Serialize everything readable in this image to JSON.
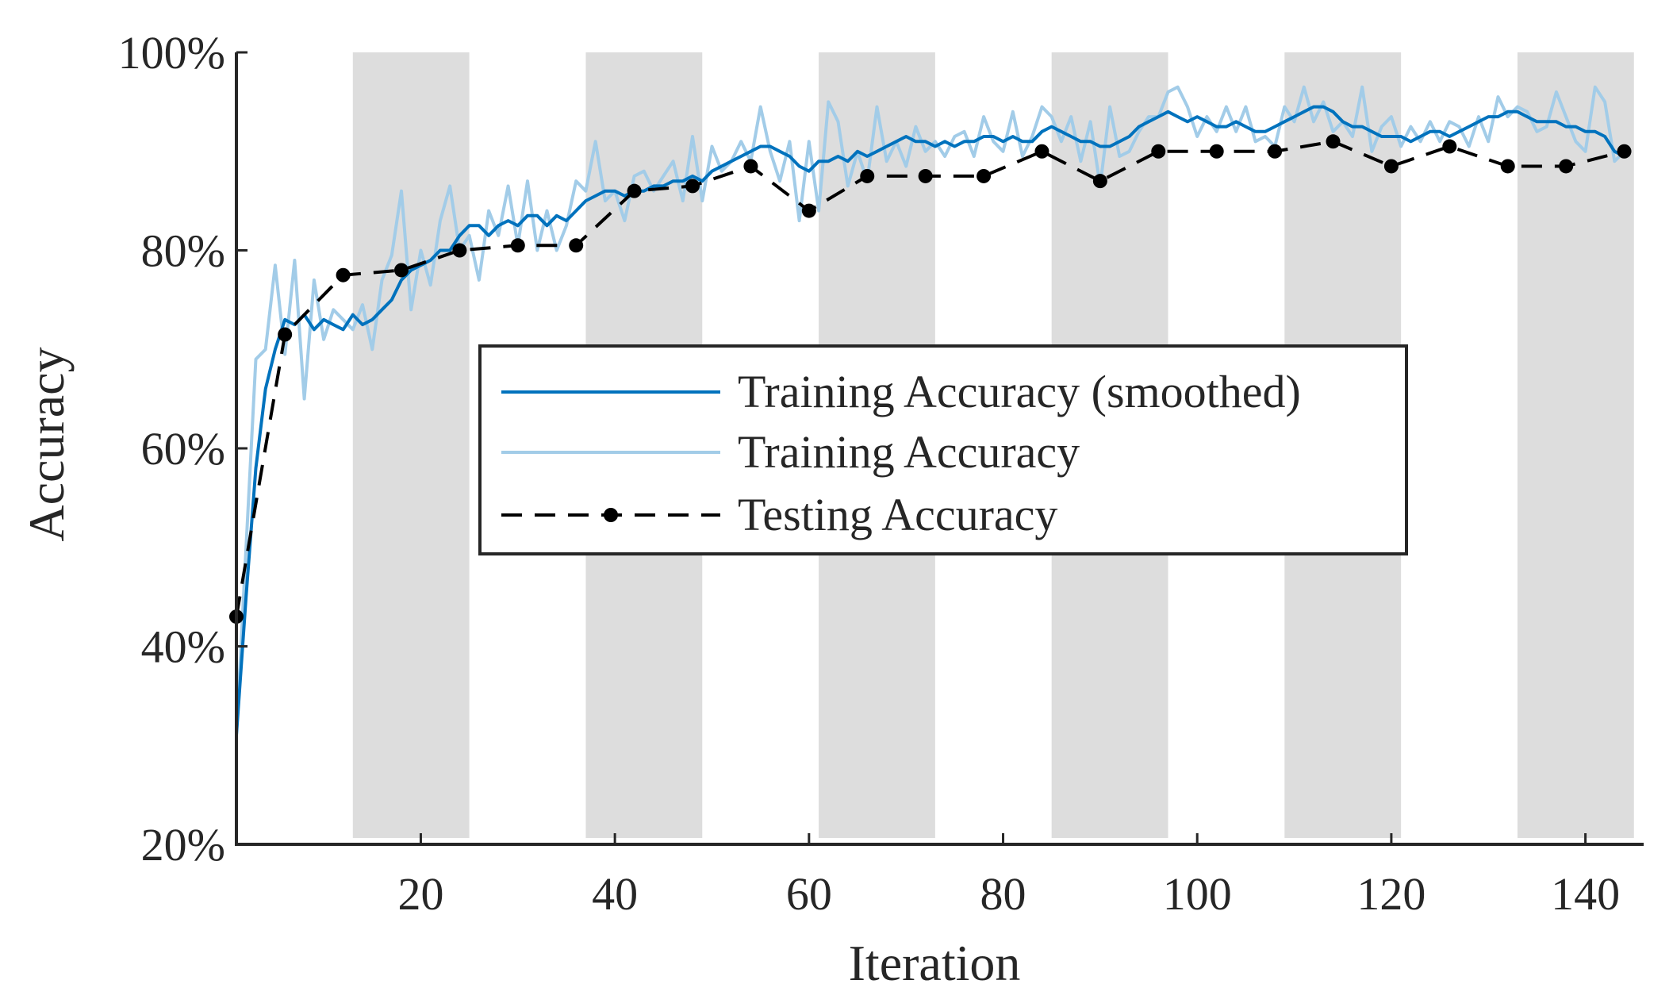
{
  "chart_data": {
    "type": "line",
    "title": "",
    "xlabel": "Iteration",
    "ylabel": "Accuracy",
    "xlim": [
      1,
      146
    ],
    "ylim": [
      20,
      100
    ],
    "xticks": [
      20,
      40,
      60,
      80,
      100,
      120,
      140
    ],
    "xtick_labels": [
      "20",
      "40",
      "60",
      "80",
      "100",
      "120",
      "140"
    ],
    "yticks": [
      20,
      40,
      60,
      80,
      100
    ],
    "ytick_labels": [
      "20%",
      "40%",
      "60%",
      "80%",
      "100%"
    ],
    "epoch_bands": [
      [
        13,
        25
      ],
      [
        37,
        49
      ],
      [
        61,
        73
      ],
      [
        85,
        97
      ],
      [
        109,
        121
      ],
      [
        133,
        145
      ]
    ],
    "legend_position": "center",
    "series": [
      {
        "name": "Training Accuracy (smoothed)",
        "color": "#0072BD",
        "style": "solid",
        "x": [
          1,
          2,
          3,
          4,
          5,
          6,
          7,
          8,
          9,
          10,
          11,
          12,
          13,
          14,
          15,
          16,
          17,
          18,
          19,
          20,
          21,
          22,
          23,
          24,
          25,
          26,
          27,
          28,
          29,
          30,
          31,
          32,
          33,
          34,
          35,
          36,
          37,
          38,
          39,
          40,
          41,
          42,
          43,
          44,
          45,
          46,
          47,
          48,
          49,
          50,
          51,
          52,
          53,
          54,
          55,
          56,
          57,
          58,
          59,
          60,
          61,
          62,
          63,
          64,
          65,
          66,
          67,
          68,
          69,
          70,
          71,
          72,
          73,
          74,
          75,
          76,
          77,
          78,
          79,
          80,
          81,
          82,
          83,
          84,
          85,
          86,
          87,
          88,
          89,
          90,
          91,
          92,
          93,
          94,
          95,
          96,
          97,
          98,
          99,
          100,
          101,
          102,
          103,
          104,
          105,
          106,
          107,
          108,
          109,
          110,
          111,
          112,
          113,
          114,
          115,
          116,
          117,
          118,
          119,
          120,
          121,
          122,
          123,
          124,
          125,
          126,
          127,
          128,
          129,
          130,
          131,
          132,
          133,
          134,
          135,
          136,
          137,
          138,
          139,
          140,
          141,
          142,
          143,
          144
        ],
        "values": [
          31.0,
          45.0,
          58.0,
          66.0,
          70.0,
          73.0,
          72.5,
          73.5,
          72.0,
          73.0,
          72.5,
          72.0,
          73.5,
          72.5,
          73.0,
          74.0,
          75.0,
          77.0,
          78.0,
          78.5,
          79.0,
          80.0,
          80.0,
          81.5,
          82.5,
          82.5,
          81.5,
          82.5,
          83.0,
          82.5,
          83.5,
          83.5,
          82.5,
          83.5,
          83.0,
          84.0,
          85.0,
          85.5,
          86.0,
          86.0,
          85.5,
          86.0,
          86.0,
          86.5,
          86.5,
          87.0,
          87.0,
          87.5,
          87.0,
          88.0,
          88.5,
          89.0,
          89.5,
          90.0,
          90.5,
          90.5,
          90.0,
          89.5,
          88.5,
          88.0,
          89.0,
          89.0,
          89.5,
          89.0,
          90.0,
          89.5,
          90.0,
          90.5,
          91.0,
          91.5,
          91.0,
          91.0,
          90.5,
          91.0,
          90.5,
          91.0,
          91.0,
          91.5,
          91.5,
          91.0,
          91.5,
          91.0,
          91.0,
          92.0,
          92.5,
          92.0,
          91.5,
          91.0,
          91.0,
          90.5,
          90.5,
          91.0,
          91.5,
          92.5,
          93.0,
          93.5,
          94.0,
          93.5,
          93.0,
          93.5,
          93.0,
          92.5,
          92.5,
          93.0,
          92.5,
          92.0,
          92.0,
          92.5,
          93.0,
          93.5,
          94.0,
          94.5,
          94.5,
          94.0,
          93.0,
          92.5,
          92.5,
          92.0,
          91.5,
          91.5,
          91.5,
          91.0,
          91.5,
          92.0,
          92.0,
          91.5,
          92.0,
          92.5,
          93.0,
          93.5,
          93.5,
          94.0,
          94.0,
          93.5,
          93.0,
          93.0,
          93.0,
          92.5,
          92.5,
          92.0,
          92.0,
          91.5,
          90.0,
          89.5
        ]
      },
      {
        "name": "Training Accuracy",
        "color": "#A2CCE8",
        "style": "solid",
        "x": [
          1,
          2,
          3,
          4,
          5,
          6,
          7,
          8,
          9,
          10,
          11,
          12,
          13,
          14,
          15,
          16,
          17,
          18,
          19,
          20,
          21,
          22,
          23,
          24,
          25,
          26,
          27,
          28,
          29,
          30,
          31,
          32,
          33,
          34,
          35,
          36,
          37,
          38,
          39,
          40,
          41,
          42,
          43,
          44,
          45,
          46,
          47,
          48,
          49,
          50,
          51,
          52,
          53,
          54,
          55,
          56,
          57,
          58,
          59,
          60,
          61,
          62,
          63,
          64,
          65,
          66,
          67,
          68,
          69,
          70,
          71,
          72,
          73,
          74,
          75,
          76,
          77,
          78,
          79,
          80,
          81,
          82,
          83,
          84,
          85,
          86,
          87,
          88,
          89,
          90,
          91,
          92,
          93,
          94,
          95,
          96,
          97,
          98,
          99,
          100,
          101,
          102,
          103,
          104,
          105,
          106,
          107,
          108,
          109,
          110,
          111,
          112,
          113,
          114,
          115,
          116,
          117,
          118,
          119,
          120,
          121,
          122,
          123,
          124,
          125,
          126,
          127,
          128,
          129,
          130,
          131,
          132,
          133,
          134,
          135,
          136,
          137,
          138,
          139,
          140,
          141,
          142,
          143,
          144
        ],
        "values": [
          31.0,
          50.0,
          69.0,
          70.0,
          78.5,
          69.5,
          79.0,
          65.0,
          77.0,
          71.0,
          74.0,
          73.0,
          72.0,
          74.5,
          70.0,
          77.0,
          79.5,
          86.0,
          74.0,
          80.0,
          76.5,
          83.0,
          86.5,
          80.0,
          81.5,
          77.0,
          84.0,
          81.5,
          86.5,
          80.5,
          87.0,
          80.0,
          84.0,
          80.0,
          82.5,
          87.0,
          86.0,
          91.0,
          85.0,
          86.0,
          83.0,
          87.5,
          88.0,
          86.0,
          87.5,
          89.0,
          85.0,
          91.5,
          85.0,
          90.5,
          88.0,
          89.0,
          91.0,
          89.0,
          94.5,
          90.0,
          87.0,
          91.0,
          83.0,
          91.0,
          84.0,
          95.0,
          93.0,
          86.5,
          90.0,
          87.0,
          94.5,
          89.0,
          91.0,
          88.5,
          92.5,
          90.0,
          91.0,
          89.5,
          91.5,
          92.0,
          89.5,
          93.5,
          91.0,
          90.0,
          94.0,
          89.5,
          91.5,
          94.5,
          93.5,
          91.0,
          93.5,
          89.0,
          93.0,
          86.5,
          94.5,
          89.5,
          90.0,
          92.0,
          93.5,
          93.5,
          96.0,
          96.5,
          94.5,
          91.5,
          93.5,
          92.0,
          94.5,
          92.0,
          94.5,
          91.0,
          91.5,
          90.5,
          94.5,
          93.0,
          96.5,
          93.0,
          95.0,
          92.0,
          93.0,
          91.5,
          96.5,
          90.0,
          92.5,
          93.5,
          90.5,
          92.5,
          91.0,
          93.0,
          91.0,
          93.0,
          92.5,
          90.5,
          93.5,
          91.0,
          95.5,
          93.5,
          94.5,
          94.0,
          92.0,
          92.5,
          96.0,
          93.5,
          91.0,
          90.0,
          96.5,
          95.0,
          89.0,
          90.0
        ]
      },
      {
        "name": "Testing Accuracy",
        "color": "#000000",
        "style": "dashed",
        "marker": "dot",
        "x": [
          1,
          6,
          12,
          18,
          24,
          30,
          36,
          42,
          48,
          54,
          60,
          66,
          72,
          78,
          84,
          90,
          96,
          102,
          108,
          114,
          120,
          126,
          132,
          138,
          144
        ],
        "values": [
          43.0,
          71.5,
          77.5,
          78.0,
          80.0,
          80.5,
          80.5,
          86.0,
          86.5,
          88.5,
          84.0,
          87.5,
          87.5,
          87.5,
          90.0,
          87.0,
          90.0,
          90.0,
          90.0,
          91.0,
          88.5,
          90.5,
          88.5,
          88.5,
          90.0
        ]
      }
    ]
  }
}
